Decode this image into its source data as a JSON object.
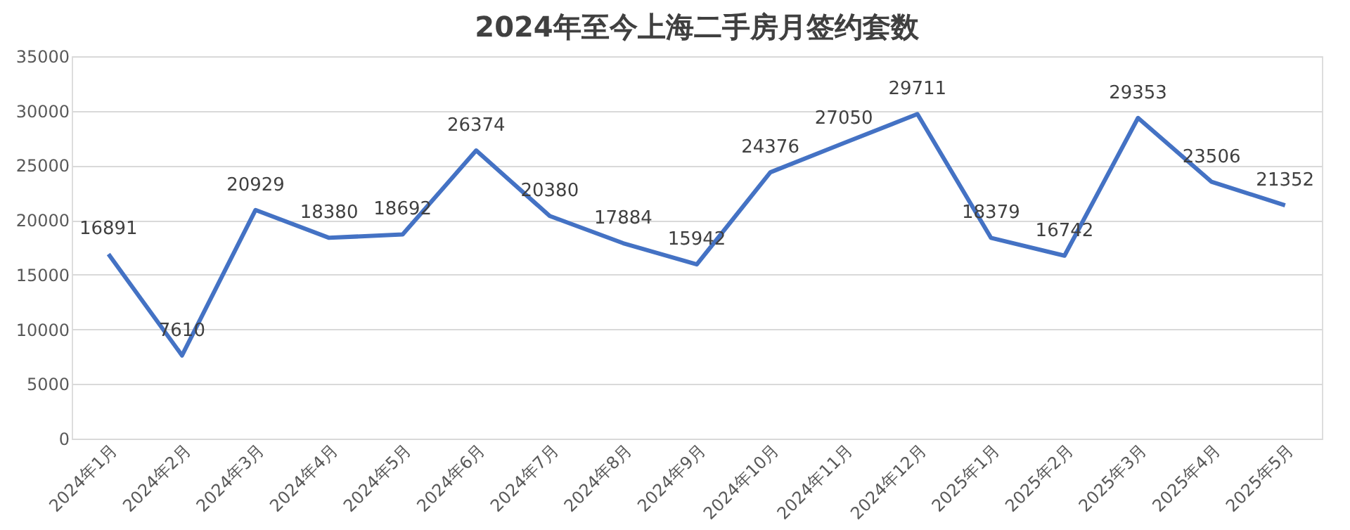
{
  "chart_data": {
    "type": "line",
    "title": "2024年至今上海二手房月签约套数",
    "categories": [
      "2024年1月",
      "2024年2月",
      "2024年3月",
      "2024年4月",
      "2024年5月",
      "2024年6月",
      "2024年7月",
      "2024年8月",
      "2024年9月",
      "2024年10月",
      "2024年11月",
      "2024年12月",
      "2025年1月",
      "2025年2月",
      "2025年3月",
      "2025年4月",
      "2025年5月"
    ],
    "series": [
      {
        "color": "#4472c4",
        "values": [
          16891,
          7610,
          20929,
          18380,
          18692,
          26374,
          20380,
          17884,
          15942,
          24376,
          27050,
          29711,
          18379,
          16742,
          29353,
          23506,
          21352
        ]
      }
    ],
    "ylim": [
      0,
      35000
    ],
    "yticks": [
      0,
      5000,
      10000,
      15000,
      20000,
      25000,
      30000,
      35000
    ],
    "grid": "y",
    "data_labels": true,
    "marker": "none",
    "line_style": "solid",
    "legend": false
  }
}
